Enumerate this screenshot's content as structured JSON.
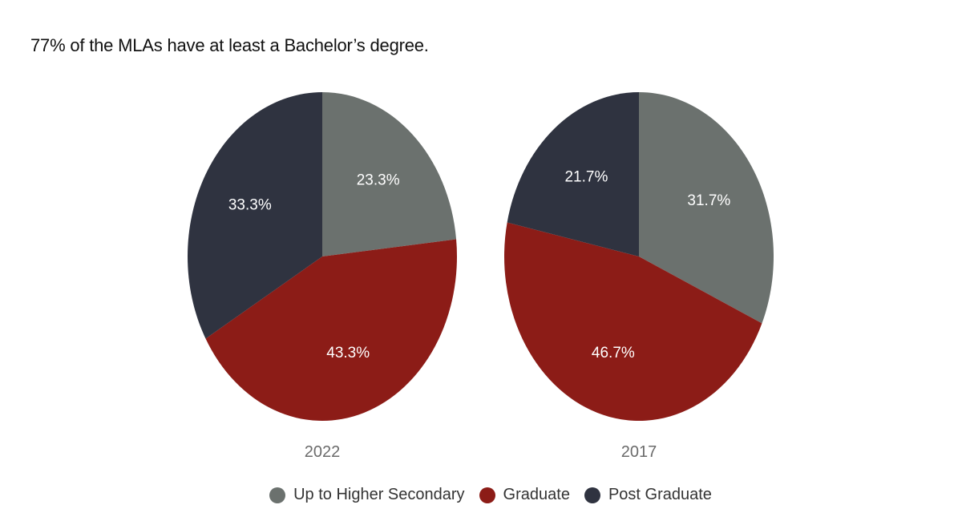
{
  "headline": "77% of the MLAs have at least a Bachelor’s degree.",
  "colors": {
    "up_to_higher_secondary": "#6b716e",
    "graduate": "#8c1c17",
    "post_graduate": "#2f3340",
    "label_text": "#ffffff",
    "year_text": "#6b6b6b"
  },
  "legend": {
    "items": [
      {
        "label": "Up to Higher Secondary",
        "color": "#6b716e"
      },
      {
        "label": "Graduate",
        "color": "#8c1c17"
      },
      {
        "label": "Post Graduate",
        "color": "#2f3340"
      }
    ]
  },
  "chart_data": [
    {
      "type": "pie",
      "title": "2022",
      "categories": [
        "Up to Higher Secondary",
        "Graduate",
        "Post Graduate"
      ],
      "values": [
        23.3,
        43.3,
        33.3
      ],
      "labels": [
        "23.3%",
        "43.3%",
        "33.3%"
      ],
      "colors": [
        "#6b716e",
        "#8c1c17",
        "#2f3340"
      ],
      "legend": "bottom"
    },
    {
      "type": "pie",
      "title": "2017",
      "categories": [
        "Up to Higher Secondary",
        "Graduate",
        "Post Graduate"
      ],
      "values": [
        31.7,
        46.7,
        21.7
      ],
      "labels": [
        "31.7%",
        "46.7%",
        "21.7%"
      ],
      "colors": [
        "#6b716e",
        "#8c1c17",
        "#2f3340"
      ],
      "legend": "bottom"
    }
  ]
}
